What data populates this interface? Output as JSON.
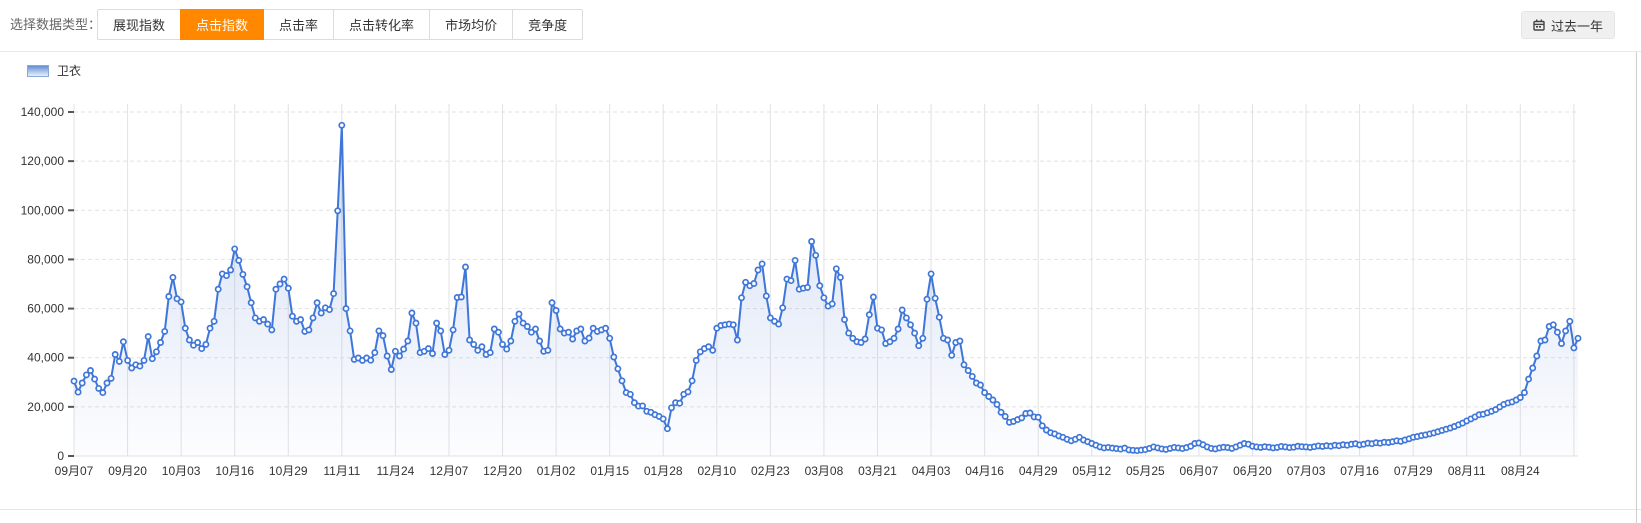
{
  "toolbar": {
    "label": "选择数据类型：",
    "active_tab_color": "#ff8800",
    "tabs": [
      {
        "key": "impression-index",
        "label": "展现指数",
        "active": false
      },
      {
        "key": "click-index",
        "label": "点击指数",
        "active": true
      },
      {
        "key": "click-rate",
        "label": "点击率",
        "active": false
      },
      {
        "key": "click-conversion-rate",
        "label": "点击转化率",
        "active": false
      },
      {
        "key": "market-average-price",
        "label": "市场均价",
        "active": false
      },
      {
        "key": "competition",
        "label": "竞争度",
        "active": false
      }
    ],
    "range_button": {
      "label": "过去一年",
      "icon": "calendar-icon"
    }
  },
  "legend": {
    "items": [
      {
        "label": "卫衣",
        "swatch_top_color": "#6290d6",
        "swatch_bottom_color": "#e9effa"
      }
    ]
  },
  "chart_data": {
    "type": "line",
    "title": "",
    "xlabel": "",
    "ylabel": "",
    "ylim": [
      0,
      140000
    ],
    "y_tick_step": 20000,
    "y_tick_labels": [
      "0",
      "20,000",
      "40,000",
      "60,000",
      "80,000",
      "100,000",
      "120,000",
      "140,000"
    ],
    "x_tick_labels": [
      "09月07",
      "09月20",
      "10月03",
      "10月16",
      "10月29",
      "11月11",
      "11月24",
      "12月07",
      "12月20",
      "01月02",
      "01月15",
      "01月28",
      "02月10",
      "02月23",
      "03月08",
      "03月21",
      "04月03",
      "04月16",
      "04月29",
      "05月12",
      "05月25",
      "06月07",
      "06月20",
      "07月03",
      "07月16",
      "07月29",
      "08月11",
      "08月24"
    ],
    "points_per_tick": 13,
    "grid": true,
    "legend_position": "top-left",
    "line_color": "#3e76d9",
    "point_fill": "#ffffff",
    "grid_color": "#e2e2e2",
    "tick_color": "#555555",
    "label_color": "#333333",
    "area_top_color": "rgba(94,136,214,0.30)",
    "area_bottom_color": "rgba(120,150,220,0.02)",
    "series": [
      {
        "name": "卫衣",
        "values": [
          30500,
          26000,
          29700,
          33000,
          34800,
          31300,
          27500,
          25800,
          29700,
          31600,
          41300,
          38500,
          46500,
          38900,
          35800,
          37100,
          36600,
          38900,
          48600,
          39600,
          42400,
          46200,
          50700,
          64900,
          72700,
          64000,
          62700,
          52000,
          47200,
          45100,
          46200,
          43700,
          45400,
          52000,
          54800,
          67900,
          74100,
          73400,
          75700,
          84300,
          79600,
          73900,
          68900,
          62400,
          56200,
          54800,
          55500,
          53700,
          51300,
          67900,
          70000,
          72000,
          68300,
          56900,
          54800,
          55500,
          50700,
          51300,
          56200,
          62400,
          58200,
          60300,
          59600,
          66100,
          99800,
          134600,
          60000,
          50900,
          39300,
          39900,
          38900,
          39900,
          39000,
          42100,
          50900,
          49000,
          40700,
          35200,
          42600,
          40700,
          43500,
          46800,
          58200,
          54100,
          42100,
          42600,
          43700,
          41700,
          54100,
          50900,
          41300,
          43000,
          51300,
          64500,
          64700,
          76900,
          47200,
          45400,
          43000,
          44500,
          41300,
          42100,
          51700,
          50400,
          45400,
          43500,
          46800,
          54800,
          57800,
          54100,
          52700,
          50400,
          51700,
          46800,
          42600,
          43000,
          62400,
          59200,
          51700,
          50000,
          50400,
          47600,
          50900,
          51700,
          46800,
          48000,
          52000,
          50700,
          51300,
          52000,
          47900,
          40300,
          35500,
          30600,
          25800,
          25100,
          21700,
          20300,
          20400,
          18200,
          17800,
          16800,
          16100,
          15100,
          11100,
          19600,
          21700,
          21500,
          25100,
          26100,
          30600,
          38900,
          42400,
          43700,
          44500,
          43000,
          52000,
          53100,
          53400,
          53700,
          53400,
          47200,
          64400,
          70700,
          69300,
          70200,
          75700,
          78200,
          65100,
          56200,
          54800,
          53700,
          60300,
          72000,
          71400,
          79600,
          67900,
          68300,
          68600,
          87300,
          81700,
          69300,
          64400,
          61000,
          61900,
          76200,
          72700,
          55500,
          50000,
          47900,
          46500,
          46200,
          47600,
          57500,
          64700,
          52000,
          51300,
          45800,
          46500,
          47900,
          51700,
          59400,
          56200,
          53400,
          50000,
          44900,
          47900,
          63800,
          74100,
          64200,
          56500,
          47900,
          47200,
          41000,
          46200,
          46800,
          37100,
          34800,
          32400,
          29700,
          28900,
          25800,
          24200,
          22800,
          21000,
          17800,
          16100,
          13700,
          14100,
          14800,
          15500,
          17300,
          17500,
          15900,
          15800,
          12300,
          10600,
          9500,
          9000,
          8200,
          7600,
          6800,
          6200,
          6800,
          7600,
          6500,
          5800,
          5100,
          4400,
          3700,
          3300,
          3500,
          3200,
          3000,
          2800,
          3200,
          2500,
          2300,
          2200,
          2400,
          2600,
          3100,
          3700,
          3300,
          2900,
          2700,
          3100,
          3500,
          3300,
          3000,
          3400,
          4000,
          5100,
          5300,
          4600,
          3700,
          3100,
          2900,
          3300,
          3600,
          3400,
          3100,
          3700,
          4400,
          5100,
          4800,
          4000,
          3700,
          3500,
          3800,
          3600,
          3300,
          3500,
          3900,
          3700,
          3400,
          3600,
          4000,
          3800,
          3700,
          3500,
          3800,
          4100,
          3900,
          4200,
          4000,
          4400,
          4200,
          4600,
          4400,
          4800,
          5000,
          4500,
          4800,
          5200,
          5000,
          5400,
          5200,
          5600,
          5500,
          5800,
          6200,
          6000,
          6500,
          7000,
          7600,
          7900,
          8300,
          8600,
          9000,
          9400,
          9900,
          10400,
          10900,
          11400,
          12000,
          12700,
          13400,
          14300,
          15100,
          15900,
          16800,
          17000,
          17600,
          18200,
          18900,
          20000,
          21000,
          21600,
          22000,
          22800,
          23800,
          25800,
          31300,
          35800,
          40700,
          46800,
          47200,
          52700,
          53400,
          50400,
          45800,
          50900,
          54800,
          44000,
          47900
        ]
      }
    ]
  }
}
